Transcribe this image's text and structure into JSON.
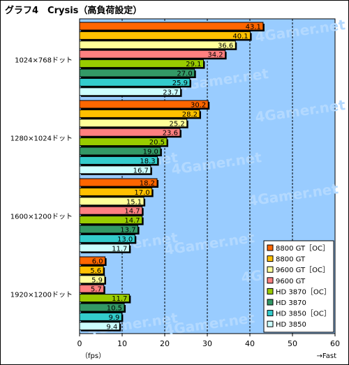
{
  "title": "グラフ4　Crysis（高負荷設定）",
  "watermark": "4Gamer.net",
  "chart_data": {
    "type": "bar",
    "orientation": "horizontal",
    "title": "グラフ4　Crysis（高負荷設定）",
    "xlabel": "（fps）",
    "x_direction_label": "→Fast",
    "xlim": [
      0,
      60
    ],
    "xticks": [
      0,
      10,
      20,
      30,
      40,
      50,
      60
    ],
    "grid": true,
    "legend_position": "bottom-right",
    "categories": [
      "1024×768ドット",
      "1280×1024ドット",
      "1600×1200ドット",
      "1920×1200ドット"
    ],
    "series": [
      {
        "name": "8800 GT［OC］",
        "color": "#ff6600",
        "values": [
          43.1,
          30.2,
          18.2,
          6.0
        ]
      },
      {
        "name": "8800 GT",
        "color": "#ffc000",
        "values": [
          40.1,
          28.2,
          17.0,
          5.6
        ]
      },
      {
        "name": "9600 GT［OC］",
        "color": "#ffff99",
        "values": [
          36.6,
          25.2,
          15.1,
          5.9
        ]
      },
      {
        "name": "9600 GT",
        "color": "#ff8080",
        "values": [
          34.2,
          23.6,
          14.7,
          5.7
        ]
      },
      {
        "name": "HD 3870［OC］",
        "color": "#99cc00",
        "values": [
          29.1,
          20.5,
          14.7,
          11.7
        ]
      },
      {
        "name": "HD 3870",
        "color": "#339966",
        "values": [
          27.0,
          19.0,
          13.7,
          10.5
        ]
      },
      {
        "name": "HD 3850［OC］",
        "color": "#33cccc",
        "values": [
          25.9,
          18.3,
          13.0,
          9.9
        ]
      },
      {
        "name": "HD 3850",
        "color": "#ccffff",
        "values": [
          23.7,
          16.7,
          11.7,
          9.4
        ]
      }
    ],
    "plot_background": "#99ccff",
    "data_label_format": "one-decimal"
  }
}
